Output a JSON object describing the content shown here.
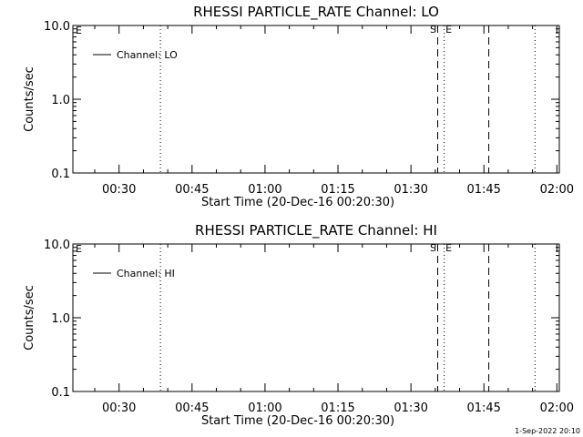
{
  "footer": {
    "timestamp": "1-Sep-2022 20:10"
  },
  "chart_data": [
    {
      "type": "line",
      "title": "RHESSI PARTICLE_RATE Channel: LO",
      "xlabel": "Start Time (20-Dec-16 00:20:30)",
      "ylabel": "Counts/sec",
      "y_scale": "log",
      "ylim": [
        0.1,
        10.0
      ],
      "y_ticks": [
        {
          "value": 0.1,
          "label": "0.1"
        },
        {
          "value": 1.0,
          "label": "1.0"
        },
        {
          "value": 10.0,
          "label": "10.0"
        }
      ],
      "xlim": [
        "00:20:30",
        "02:00:30"
      ],
      "x_ticks": [
        "00:30",
        "00:45",
        "01:00",
        "01:15",
        "01:30",
        "01:45",
        "02:00"
      ],
      "x_tick_minutes": [
        30,
        45,
        60,
        75,
        90,
        105,
        120
      ],
      "series": [
        {
          "name": "Channel: LO",
          "x": [],
          "y": []
        }
      ],
      "legend_position": "top-left",
      "vlines": [
        {
          "time": "00:38:30",
          "minute": 38.5,
          "style": "dotted",
          "label": ""
        },
        {
          "time": "01:35:30",
          "minute": 95.5,
          "style": "dashed",
          "label": "S"
        },
        {
          "time": "01:36:50",
          "minute": 96.83,
          "style": "dotted",
          "label": "E"
        },
        {
          "time": "01:46:00",
          "minute": 106,
          "style": "dashed",
          "label": ""
        },
        {
          "time": "01:55:30",
          "minute": 115.5,
          "style": "dotted",
          "label": ""
        }
      ],
      "corner_label": "E",
      "grid": false
    },
    {
      "type": "line",
      "title": "RHESSI PARTICLE_RATE Channel: HI",
      "xlabel": "Start Time (20-Dec-16 00:20:30)",
      "ylabel": "Counts/sec",
      "y_scale": "log",
      "ylim": [
        0.1,
        10.0
      ],
      "y_ticks": [
        {
          "value": 0.1,
          "label": "0.1"
        },
        {
          "value": 1.0,
          "label": "1.0"
        },
        {
          "value": 10.0,
          "label": "10.0"
        }
      ],
      "xlim": [
        "00:20:30",
        "02:00:30"
      ],
      "x_ticks": [
        "00:30",
        "00:45",
        "01:00",
        "01:15",
        "01:30",
        "01:45",
        "02:00"
      ],
      "x_tick_minutes": [
        30,
        45,
        60,
        75,
        90,
        105,
        120
      ],
      "series": [
        {
          "name": "Channel: HI",
          "x": [],
          "y": []
        }
      ],
      "legend_position": "top-left",
      "vlines": [
        {
          "time": "00:38:30",
          "minute": 38.5,
          "style": "dotted",
          "label": ""
        },
        {
          "time": "01:35:30",
          "minute": 95.5,
          "style": "dashed",
          "label": "S"
        },
        {
          "time": "01:36:50",
          "minute": 96.83,
          "style": "dotted",
          "label": "E"
        },
        {
          "time": "01:46:00",
          "minute": 106,
          "style": "dashed",
          "label": ""
        },
        {
          "time": "01:55:30",
          "minute": 115.5,
          "style": "dotted",
          "label": ""
        }
      ],
      "corner_label": "E",
      "grid": false
    }
  ]
}
